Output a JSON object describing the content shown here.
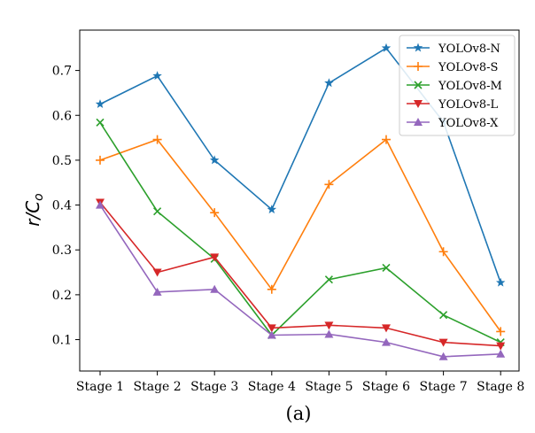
{
  "chart_data": {
    "type": "line",
    "caption": "(a)",
    "xlabel": "",
    "ylabel": "r/C_o",
    "categories": [
      "Stage 1",
      "Stage 2",
      "Stage 3",
      "Stage 4",
      "Stage 5",
      "Stage 6",
      "Stage 7",
      "Stage 8"
    ],
    "ylim": [
      0.03,
      0.79
    ],
    "yticks": [
      0.1,
      0.2,
      0.3,
      0.4,
      0.5,
      0.6,
      0.7
    ],
    "grid": false,
    "legend_position": "top-right",
    "series": [
      {
        "name": "YOLOv8-N",
        "color": "#1f77b4",
        "marker": "star",
        "values": [
          0.625,
          0.688,
          0.5,
          0.39,
          0.672,
          0.75,
          0.585,
          0.227
        ]
      },
      {
        "name": "YOLOv8-S",
        "color": "#ff7f0e",
        "marker": "plus",
        "values": [
          0.5,
          0.546,
          0.383,
          0.212,
          0.446,
          0.546,
          0.296,
          0.118
        ]
      },
      {
        "name": "YOLOv8-M",
        "color": "#2ca02c",
        "marker": "x",
        "values": [
          0.584,
          0.386,
          0.28,
          0.11,
          0.234,
          0.26,
          0.155,
          0.094
        ]
      },
      {
        "name": "YOLOv8-L",
        "color": "#d62728",
        "marker": "triangle-down",
        "values": [
          0.406,
          0.25,
          0.284,
          0.126,
          0.132,
          0.126,
          0.094,
          0.086
        ]
      },
      {
        "name": "YOLOv8-X",
        "color": "#9467bd",
        "marker": "triangle-up",
        "values": [
          0.4,
          0.206,
          0.212,
          0.11,
          0.112,
          0.094,
          0.062,
          0.068
        ]
      }
    ]
  }
}
